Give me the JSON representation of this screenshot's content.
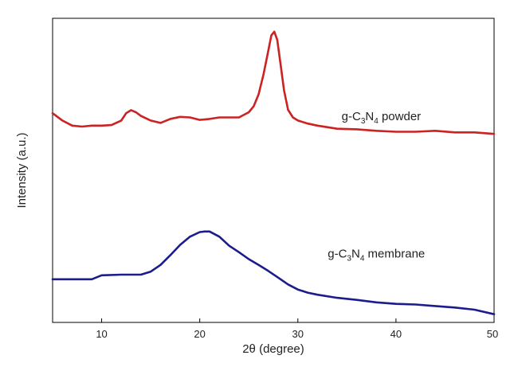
{
  "chart_data": {
    "type": "line",
    "title": "",
    "xlabel": "2θ (degree)",
    "ylabel": "Intensity (a.u.)",
    "xlim": [
      5,
      50
    ],
    "ylim": [
      0,
      1
    ],
    "x_ticks": [
      10,
      20,
      30,
      40,
      50
    ],
    "y_ticks": [],
    "grid": false,
    "series": [
      {
        "name_parts": [
          "g-C",
          "3",
          "N",
          "4",
          " powder"
        ],
        "color": "#cc2222",
        "x": [
          5,
          6,
          7,
          8,
          9,
          10,
          11,
          12,
          12.5,
          13,
          13.5,
          14,
          15,
          16,
          17,
          18,
          19,
          20,
          21,
          22,
          23,
          24,
          25,
          25.5,
          26,
          26.5,
          27,
          27.3,
          27.6,
          27.9,
          28.2,
          28.6,
          29,
          29.5,
          30,
          31,
          32,
          34,
          36,
          38,
          40,
          42,
          44,
          46,
          48,
          50
        ],
        "values": [
          0.688,
          0.664,
          0.647,
          0.644,
          0.647,
          0.647,
          0.649,
          0.664,
          0.688,
          0.698,
          0.691,
          0.679,
          0.664,
          0.656,
          0.669,
          0.676,
          0.674,
          0.666,
          0.669,
          0.674,
          0.674,
          0.674,
          0.691,
          0.711,
          0.75,
          0.816,
          0.895,
          0.944,
          0.956,
          0.929,
          0.858,
          0.762,
          0.699,
          0.674,
          0.664,
          0.654,
          0.647,
          0.637,
          0.635,
          0.63,
          0.627,
          0.627,
          0.63,
          0.625,
          0.625,
          0.62
        ]
      },
      {
        "name_parts": [
          "g-C",
          "3",
          "N",
          "4",
          " membrane"
        ],
        "color": "#1c1c8c",
        "x": [
          5,
          7,
          9,
          10,
          12,
          14,
          15,
          16,
          17,
          18,
          19,
          20,
          20.5,
          21,
          22,
          23,
          24,
          25,
          26,
          27,
          28,
          29,
          30,
          31,
          32,
          34,
          36,
          38,
          40,
          42,
          44,
          46,
          48,
          50
        ],
        "values": [
          0.142,
          0.142,
          0.142,
          0.155,
          0.157,
          0.157,
          0.167,
          0.189,
          0.221,
          0.255,
          0.282,
          0.297,
          0.299,
          0.299,
          0.282,
          0.252,
          0.231,
          0.208,
          0.189,
          0.169,
          0.147,
          0.125,
          0.108,
          0.098,
          0.091,
          0.081,
          0.074,
          0.066,
          0.061,
          0.059,
          0.054,
          0.049,
          0.042,
          0.027
        ]
      }
    ],
    "annotations": [
      {
        "series": 0,
        "x": 38.5,
        "y": 0.665
      },
      {
        "series": 1,
        "x": 38,
        "y": 0.213
      }
    ]
  }
}
